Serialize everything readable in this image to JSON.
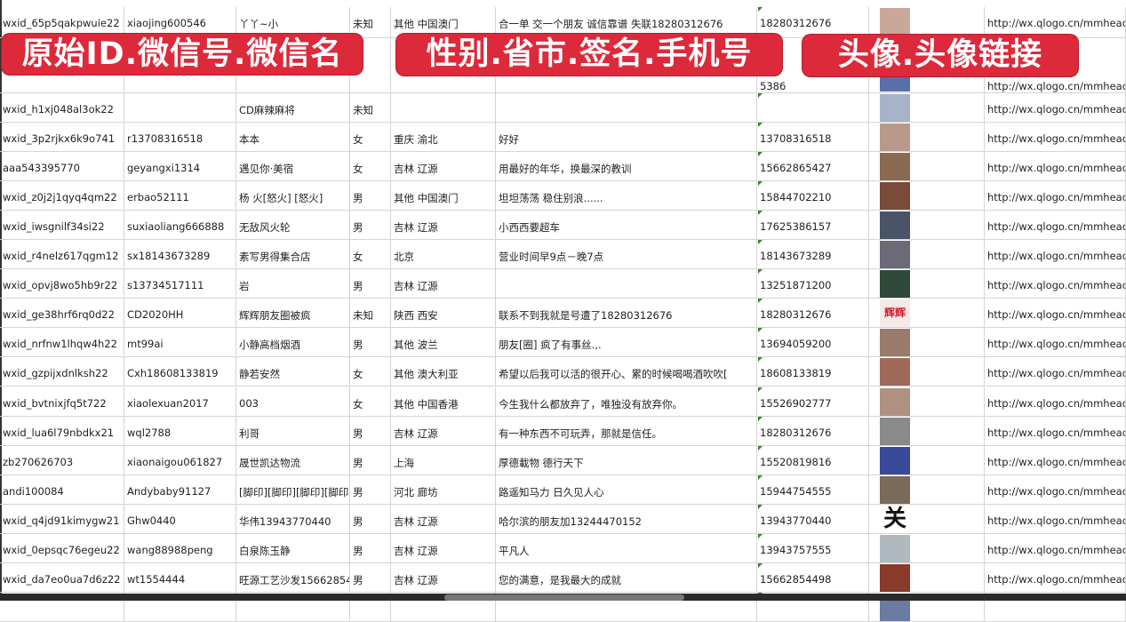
{
  "banners": [
    "原始ID.微信号.微信名",
    "性别.省市.签名.手机号",
    "头像.头像链接"
  ],
  "rows": [
    {
      "id": "wxid_65p5qakpwuie22",
      "wx": "xiaojing600546",
      "name": "丫丫~小",
      "sex": "未知",
      "region": "其他 中国澳门",
      "sign": "合一单 交一个朋友 诚信靠谱 失联18280312676",
      "phone": "18280312676",
      "url": "http://wx.qlogo.cn/mmhead",
      "avatar": "#c9a89a"
    },
    {
      "id": "",
      "wx": "",
      "name": "",
      "sex": "",
      "region": "",
      "sign": "",
      "phone": "5386",
      "url": "http://wx.qlogo.cn/mmhead",
      "avatar": "#5a6fa8"
    },
    {
      "id": "wxid_h1xj048al3ok22",
      "wx": "",
      "name": "CD麻辣麻将",
      "sex": "未知",
      "region": "",
      "sign": "",
      "phone": "",
      "url": "http://wx.qlogo.cn/mmhead",
      "avatar": "#a7b3c8"
    },
    {
      "id": "wxid_3p2rjkx6k9o741",
      "wx": "r13708316518",
      "name": "本本",
      "sex": "女",
      "region": "重庆 渝北",
      "sign": "好好",
      "phone": "13708316518",
      "url": "http://wx.qlogo.cn/mmhead",
      "avatar": "#b89a8a"
    },
    {
      "id": "aaa543395770",
      "wx": "geyangxi1314",
      "name": "遇见你·美宿",
      "sex": "女",
      "region": "吉林 辽源",
      "sign": "用最好的年华，换最深的教训",
      "phone": "15662865427",
      "url": "http://wx.qlogo.cn/mmhead",
      "avatar": "#8a6a50"
    },
    {
      "id": "wxid_z0j2j1qyq4qm22",
      "wx": "erbao52111",
      "name": "杨 火[怒火] [怒火]",
      "sex": "男",
      "region": "其他 中国澳门",
      "sign": "坦坦荡荡 稳住别浪......",
      "phone": "15844702210",
      "url": "http://wx.qlogo.cn/mmhead",
      "avatar": "#7a4a3a"
    },
    {
      "id": "wxid_iwsgnilf34si22",
      "wx": "suxiaoliang666888",
      "name": "无敌风火轮",
      "sex": "男",
      "region": "吉林 辽源",
      "sign": "小西西要超车",
      "phone": "17625386157",
      "url": "http://wx.qlogo.cn/mmhead",
      "avatar": "#4a5468"
    },
    {
      "id": "wxid_r4nelz617qgm12",
      "wx": "sx18143673289",
      "name": "素写男得集合店",
      "sex": "女",
      "region": "北京",
      "sign": "营业时间早9点－晚7点",
      "phone": "18143673289",
      "url": "http://wx.qlogo.cn/mmhead",
      "avatar": "#6a6a78"
    },
    {
      "id": "wxid_opvj8wo5hb9r22",
      "wx": "s13734517111",
      "name": "岩",
      "sex": "男",
      "region": "吉林 辽源",
      "sign": "",
      "phone": "13251871200",
      "url": "http://wx.qlogo.cn/mmhead",
      "avatar": "#2f4a3a"
    },
    {
      "id": "wxid_ge38hrf6rq0d22",
      "wx": "CD2020HH",
      "name": "辉辉朋友圈被疯",
      "sex": "未知",
      "region": "陕西 西安",
      "sign": "联系不到我就是号遭了18280312676",
      "phone": "18280312676",
      "url": "http://wx.qlogo.cn/mmhead",
      "avatar": "#f4e8e8",
      "avatar_text": "辉辉"
    },
    {
      "id": "wxid_nrfnw1lhqw4h22",
      "wx": "mt99ai",
      "name": "小静高档烟酒",
      "sex": "男",
      "region": "其他 波兰",
      "sign": "朋友[圈] 疯了有事丝.,.",
      "phone": "13694059200",
      "url": "http://wx.qlogo.cn/mmhead",
      "avatar": "#9a7a6a"
    },
    {
      "id": "wxid_gzpijxdnlksh22",
      "wx": "Cxh18608133819",
      "name": "静若安然",
      "sex": "女",
      "region": "其他 澳大利亚",
      "sign": "希望以后我可以活的很开心、累的时候喝喝酒吹吹[",
      "phone": "18608133819",
      "url": "http://wx.qlogo.cn/mmhead",
      "avatar": "#a06a5a"
    },
    {
      "id": "wxid_bvtnixjfq5t722",
      "wx": "xiaolexuan2017",
      "name": "003",
      "sex": "女",
      "region": "其他 中国香港",
      "sign": "今生我什么都放弃了，唯独没有放弃你。",
      "phone": "15526902777",
      "url": "http://wx.qlogo.cn/mmhead",
      "avatar": "#b09080"
    },
    {
      "id": "wxid_lua6l79nbdkx21",
      "wx": "wql2788",
      "name": "利哥",
      "sex": "男",
      "region": "吉林 辽源",
      "sign": "有一种东西不可玩弄，那就是信任。",
      "phone": "18280312676",
      "url": "http://wx.qlogo.cn/mmhead",
      "avatar": "#8a8a8a"
    },
    {
      "id": "zb270626703",
      "wx": "xiaonaigou061827",
      "name": "晟世凯达物流",
      "sex": "男",
      "region": "上海",
      "sign": "厚德載物 德行天下",
      "phone": "15520819816",
      "url": "http://wx.qlogo.cn/mmhead",
      "avatar": "#3a4a9a"
    },
    {
      "id": "andi100084",
      "wx": "Andybaby91127",
      "name": "[脚印][脚印][脚印][脚印]",
      "sex": "男",
      "region": "河北 廊坊",
      "sign": "路遥知马力 日久见人心",
      "phone": "15944754555",
      "url": "http://wx.qlogo.cn/mmhead",
      "avatar": "#7a6a5a"
    },
    {
      "id": "wxid_q4jd91kimygw21",
      "wx": "Ghw0440",
      "name": "华伟13943770440",
      "sex": "男",
      "region": "吉林 辽源",
      "sign": "哈尔滨的朋友加13244470152",
      "phone": "13943770440",
      "url": "http://wx.qlogo.cn/mmhead",
      "avatar": "#ffffff",
      "avatar_text": "关"
    },
    {
      "id": "wxid_0epsqc76egeu22",
      "wx": "wang88988peng",
      "name": "白泉陈玉静",
      "sex": "男",
      "region": "吉林 辽源",
      "sign": "平凡人",
      "phone": "13943757555",
      "url": "http://wx.qlogo.cn/mmhead",
      "avatar": "#b0b8c0"
    },
    {
      "id": "wxid_da7eo0ua7d6z22",
      "wx": "wt1554444",
      "name": "旺源工艺沙发15662854",
      "sex": "男",
      "region": "吉林 辽源",
      "sign": "您的满意，是我最大的成就",
      "phone": "15662854498",
      "url": "http://wx.qlogo.cn/mmhead",
      "avatar": "#8a3a2a"
    },
    {
      "id": "",
      "wx": "",
      "name": "",
      "sex": "",
      "region": "",
      "sign": "",
      "phone": "",
      "url": "",
      "avatar": "#6a7aa0"
    }
  ]
}
